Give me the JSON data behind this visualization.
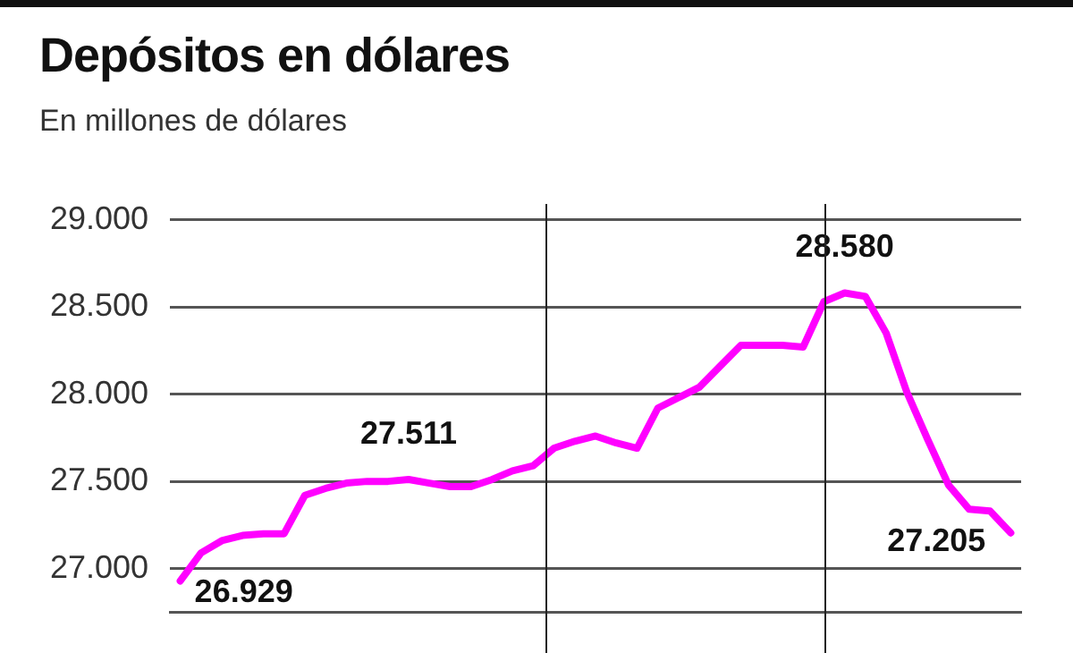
{
  "chart_data": {
    "type": "line",
    "title": "Depósitos en dólares",
    "subtitle": "En millones de dólares",
    "categories": [
      null,
      null,
      null,
      null,
      null,
      null,
      null,
      null,
      null,
      null,
      null,
      null,
      null,
      null,
      null,
      null,
      null,
      null,
      null,
      null,
      null,
      null,
      null,
      null,
      null,
      null,
      null,
      null,
      null,
      null,
      null,
      null,
      null,
      null,
      null,
      null,
      null,
      null,
      null,
      null,
      null
    ],
    "series": [
      {
        "color": "#ff00ff",
        "values": [
          26929,
          27090,
          27160,
          27190,
          27200,
          27200,
          27420,
          27460,
          27490,
          27500,
          27500,
          27511,
          27490,
          27470,
          27470,
          27510,
          27560,
          27590,
          27690,
          27730,
          27760,
          27720,
          27690,
          27920,
          27980,
          28040,
          28160,
          28280,
          28280,
          28280,
          28270,
          28530,
          28580,
          28560,
          28350,
          28010,
          27740,
          27480,
          27340,
          27330,
          27205
        ],
        "value_labels": [
          "26.929",
          null,
          null,
          null,
          null,
          null,
          null,
          null,
          null,
          null,
          null,
          "27.511",
          null,
          null,
          null,
          null,
          null,
          null,
          null,
          null,
          null,
          null,
          null,
          null,
          null,
          null,
          null,
          null,
          null,
          null,
          null,
          null,
          "28.580",
          null,
          null,
          null,
          null,
          null,
          null,
          null,
          "27.205"
        ]
      }
    ],
    "ylim": [
      26750,
      29000
    ],
    "yticks": [
      {
        "value": 27000,
        "label": "27.000"
      },
      {
        "value": 27500,
        "label": "27.500"
      },
      {
        "value": 28000,
        "label": "28.000"
      },
      {
        "value": 28500,
        "label": "28.500"
      },
      {
        "value": 29000,
        "label": "29.000"
      }
    ],
    "tick_labels": "y",
    "grid": "y",
    "legend": false,
    "marker": "none",
    "line_style": "solid"
  }
}
